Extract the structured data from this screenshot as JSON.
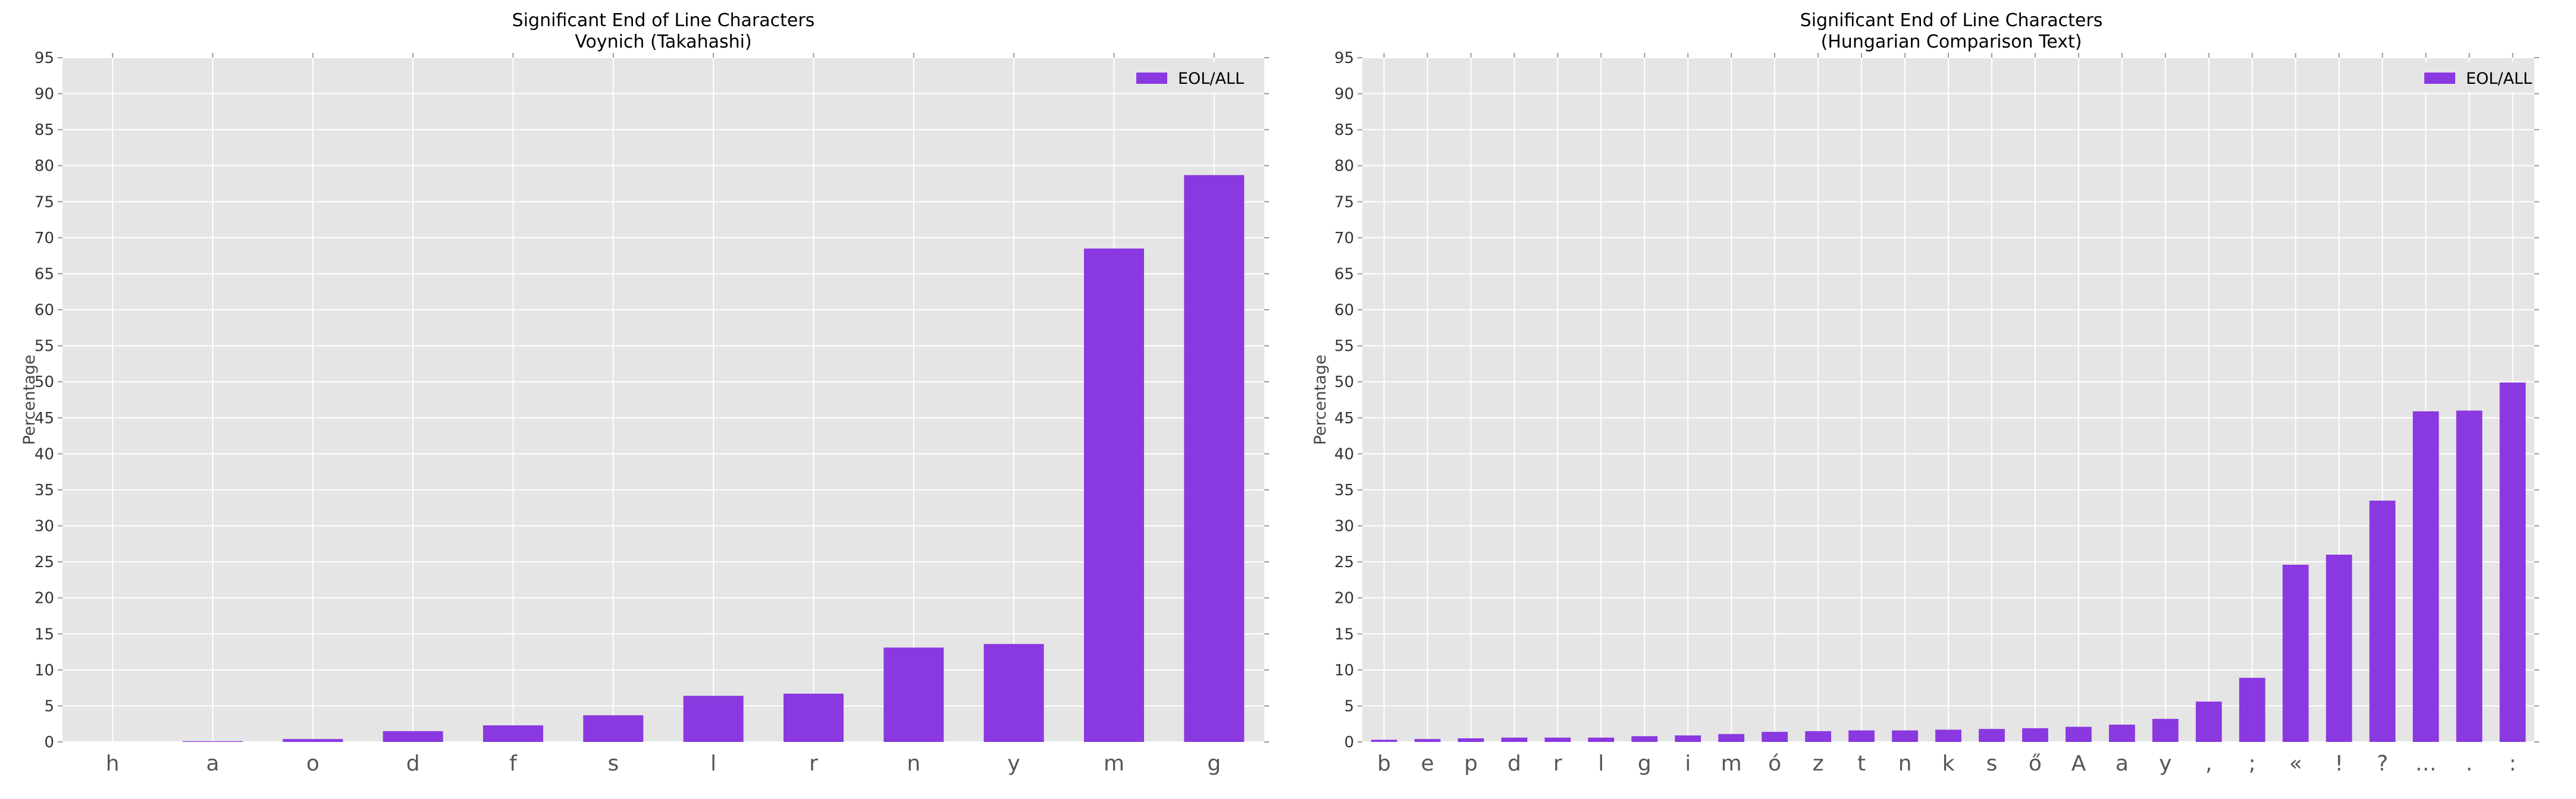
{
  "colors": {
    "bar": "#8a38e0",
    "plot_bg": "#e5e5e5",
    "grid": "#ffffff"
  },
  "chart_data": [
    {
      "type": "bar",
      "title": "Significant End of Line Characters\nVoynich (Takahashi)",
      "ylabel": "Percentage",
      "xlabel": "",
      "ylim": [
        0,
        95
      ],
      "yticks": [
        0,
        5,
        10,
        15,
        20,
        25,
        30,
        35,
        40,
        45,
        50,
        55,
        60,
        65,
        70,
        75,
        80,
        85,
        90,
        95
      ],
      "grid": true,
      "legend_position": "top-right",
      "categories": [
        "h",
        "a",
        "o",
        "d",
        "f",
        "s",
        "l",
        "r",
        "n",
        "y",
        "m",
        "g"
      ],
      "series": [
        {
          "name": "EOL/ALL",
          "values": [
            0.0,
            0.1,
            0.4,
            1.5,
            2.3,
            3.7,
            6.4,
            6.7,
            13.1,
            13.6,
            68.5,
            78.7
          ]
        }
      ]
    },
    {
      "type": "bar",
      "title": "Significant End of Line Characters\n(Hungarian Comparison Text)",
      "ylabel": "Percentage",
      "xlabel": "",
      "ylim": [
        0,
        95
      ],
      "yticks": [
        0,
        5,
        10,
        15,
        20,
        25,
        30,
        35,
        40,
        45,
        50,
        55,
        60,
        65,
        70,
        75,
        80,
        85,
        90,
        95
      ],
      "grid": true,
      "legend_position": "top-right",
      "categories": [
        "b",
        "e",
        "p",
        "d",
        "r",
        "l",
        "g",
        "i",
        "m",
        "ó",
        "z",
        "t",
        "n",
        "k",
        "s",
        "ő",
        "A",
        "a",
        "y",
        ",",
        ";",
        "«",
        "!",
        "?",
        "…",
        ".",
        ":"
      ],
      "series": [
        {
          "name": "EOL/ALL",
          "values": [
            0.3,
            0.4,
            0.5,
            0.6,
            0.6,
            0.6,
            0.8,
            0.9,
            1.1,
            1.4,
            1.5,
            1.6,
            1.6,
            1.7,
            1.8,
            1.9,
            2.1,
            2.4,
            3.2,
            5.6,
            8.9,
            24.6,
            26.0,
            33.5,
            45.9,
            46.0,
            49.9
          ]
        }
      ]
    }
  ]
}
